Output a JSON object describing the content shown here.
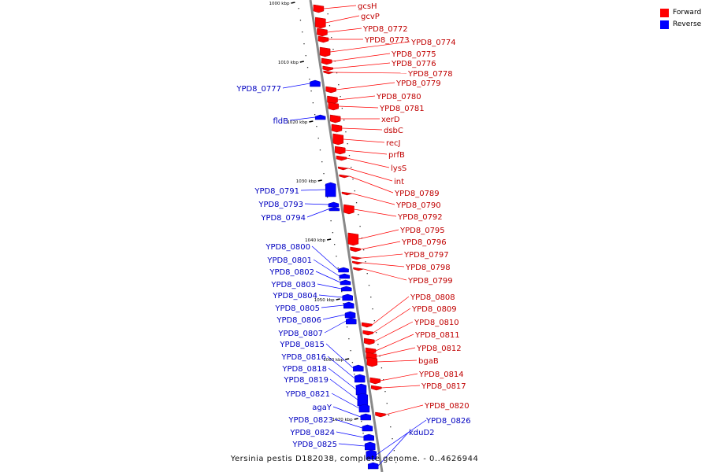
{
  "caption": "Yersinia pestis D182038, complete genome. - 0..4626944",
  "legend": [
    {
      "label": "Forward",
      "color": "#ff0000"
    },
    {
      "label": "Reverse",
      "color": "#0000ff"
    }
  ],
  "colors": {
    "forward": "#ff0000",
    "reverse": "#0000ff",
    "axis": "#888888"
  },
  "ticks": [
    "1000 kbp",
    "1010 kbp",
    "1020 kbp",
    "1030 kbp",
    "1040 kbp",
    "1050 kbp",
    "1060 kbp",
    "1070 kbp"
  ],
  "forward_genes": [
    "gcsH",
    "gcvP",
    "YPD8_0772",
    "YPD8_0773",
    "YPD8_0774",
    "YPD8_0775",
    "YPD8_0776",
    "YPD8_0778",
    "YPD8_0779",
    "YPD8_0780",
    "YPD8_0781",
    "xerD",
    "dsbC",
    "recJ",
    "prfB",
    "lysS",
    "int",
    "YPD8_0789",
    "YPD8_0790",
    "YPD8_0792",
    "YPD8_0795",
    "YPD8_0796",
    "YPD8_0797",
    "YPD8_0798",
    "YPD8_0799",
    "YPD8_0808",
    "YPD8_0809",
    "YPD8_0810",
    "YPD8_0811",
    "YPD8_0812",
    "bgaB",
    "YPD8_0814",
    "YPD8_0817",
    "YPD8_0820"
  ],
  "reverse_genes": [
    "YPD8_0777",
    "fldB",
    "YPD8_0791",
    "YPD8_0793",
    "YPD8_0794",
    "YPD8_0800",
    "YPD8_0801",
    "YPD8_0802",
    "YPD8_0803",
    "YPD8_0804",
    "YPD8_0805",
    "YPD8_0806",
    "YPD8_0807",
    "YPD8_0815",
    "YPD8_0816",
    "YPD8_0818",
    "YPD8_0819",
    "YPD8_0821",
    "agaY",
    "YPD8_0823",
    "YPD8_0824",
    "YPD8_0825",
    "YPD8_0826",
    "kduD2"
  ]
}
